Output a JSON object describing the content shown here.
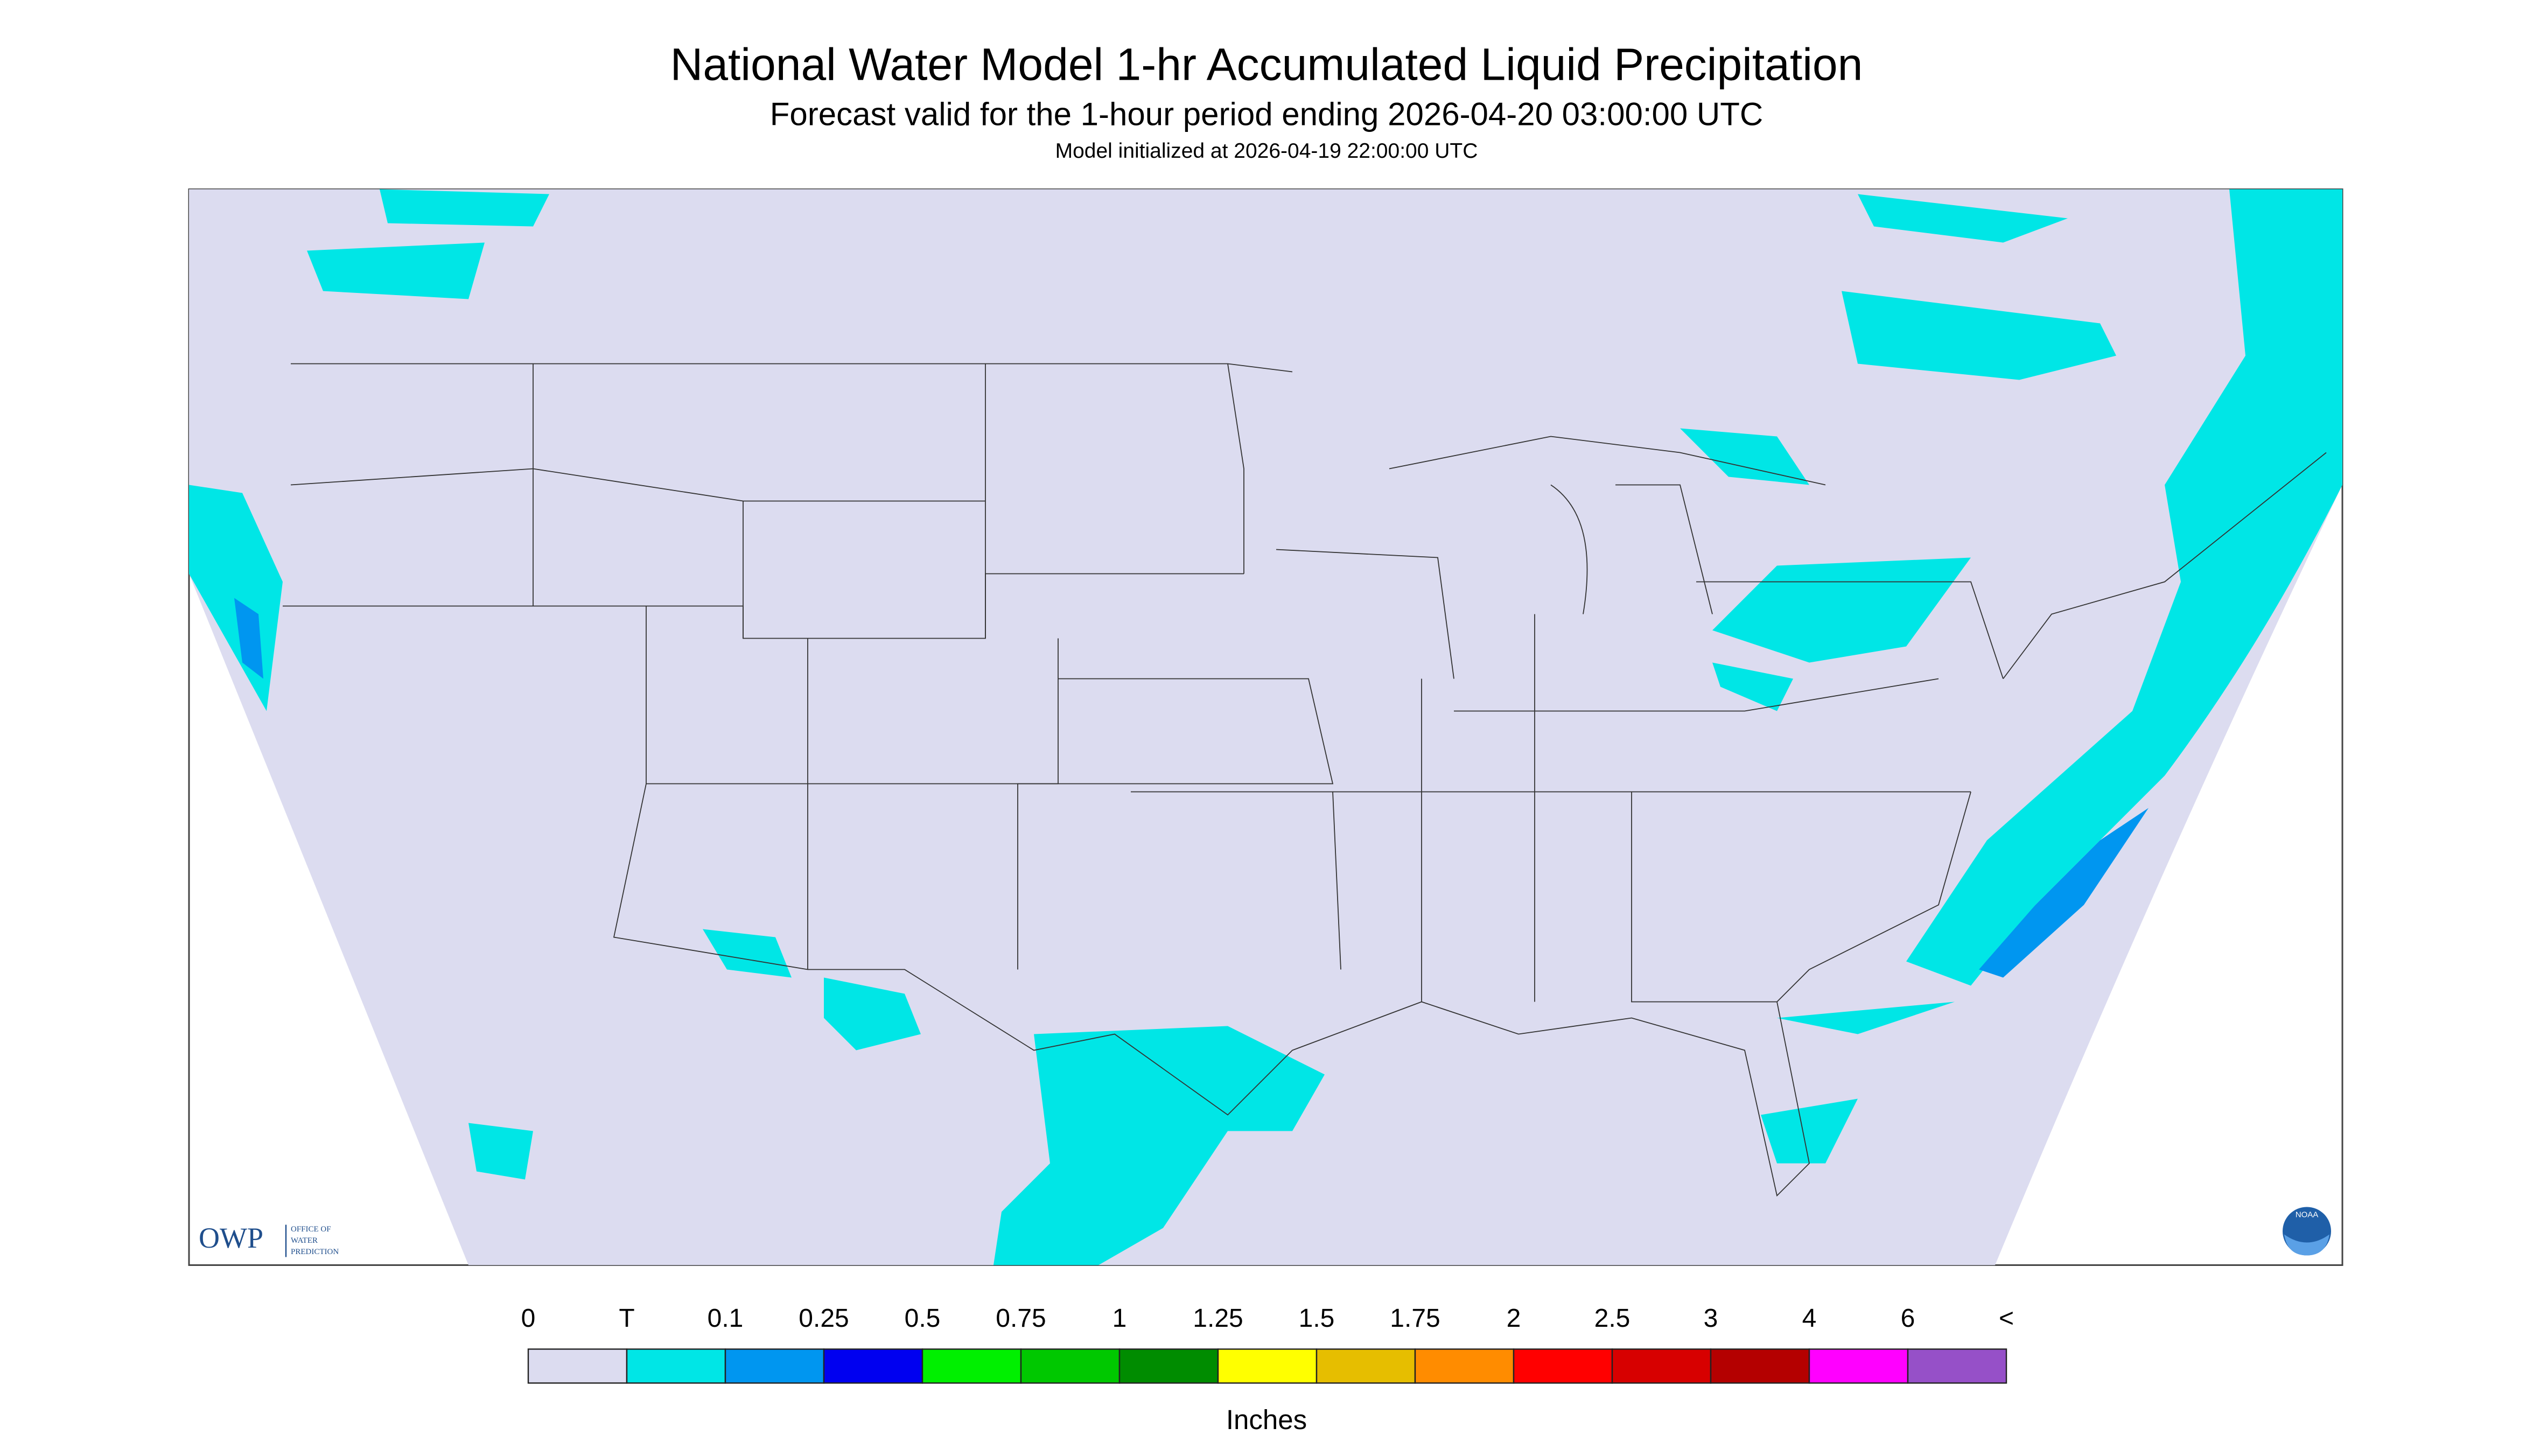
{
  "header": {
    "title": "National Water Model 1-hr Accumulated Liquid Precipitation",
    "subtitle": "Forecast valid for the 1-hour period ending 2026-04-20 03:00:00 UTC",
    "note": "Model initialized at 2026-04-19 22:00:00 UTC"
  },
  "logos": {
    "owp": "OWP",
    "owp_text": [
      "OFFICE OF",
      "WATER",
      "PREDICTION"
    ],
    "noaa": "NOAA"
  },
  "legend": {
    "labels": [
      "0",
      "T",
      "0.1",
      "0.25",
      "0.5",
      "0.75",
      "1",
      "1.25",
      "1.5",
      "1.75",
      "2",
      "2.5",
      "3",
      "4",
      "6",
      "<"
    ],
    "colors": [
      "#dcdcf0",
      "#00e6e6",
      "#0096f0",
      "#0000f0",
      "#00f000",
      "#00c800",
      "#008c00",
      "#ffff00",
      "#e6be00",
      "#ff8c00",
      "#ff0000",
      "#d70000",
      "#b40000",
      "#ff00ff",
      "#9650c8"
    ],
    "units": "Inches"
  }
}
